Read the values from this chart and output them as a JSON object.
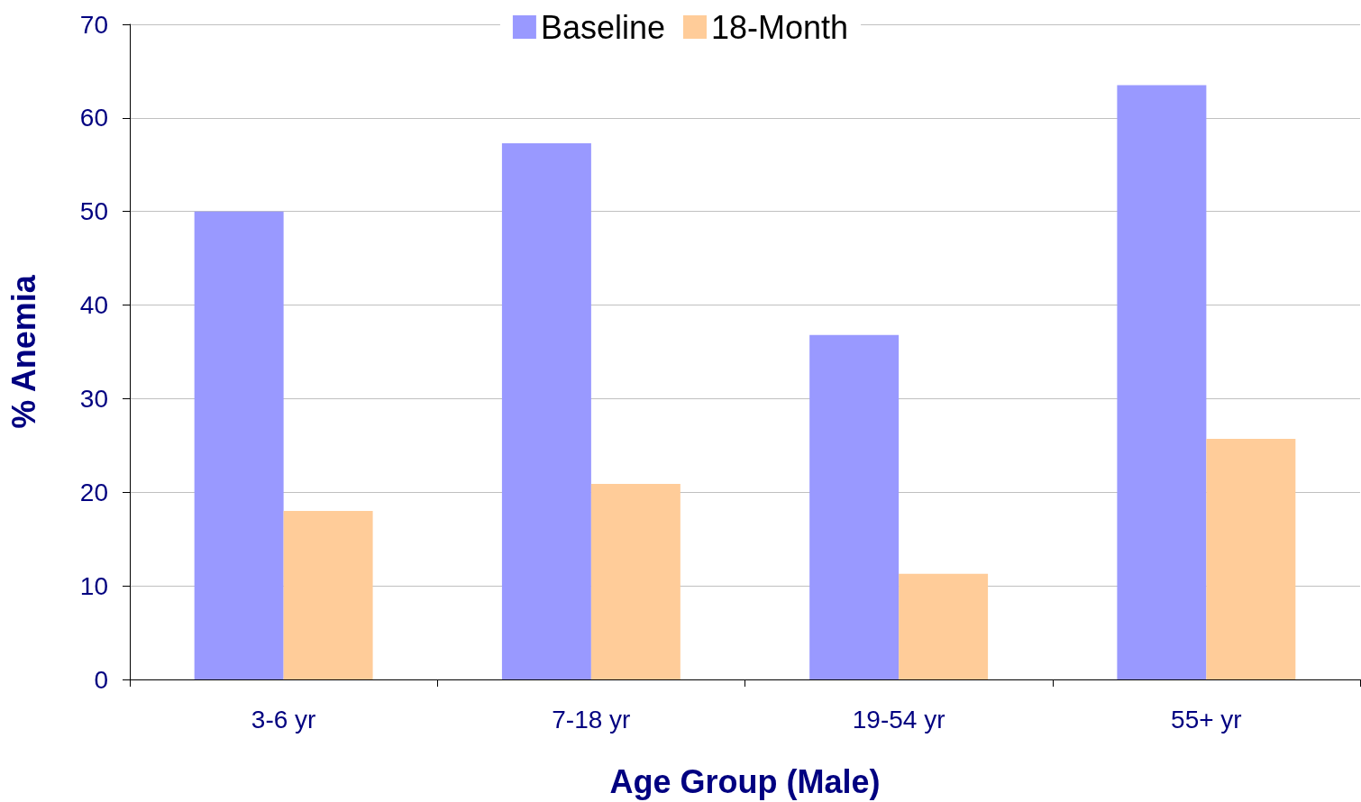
{
  "chart_data": {
    "type": "bar",
    "xlabel": "Age Group (Male)",
    "ylabel": "% Anemia",
    "categories": [
      "3-6 yr",
      "7-18 yr",
      "19-54 yr",
      "55+ yr"
    ],
    "series": [
      {
        "name": "Baseline",
        "color": "#9999ff",
        "values": [
          50,
          57.3,
          36.8,
          63.5
        ]
      },
      {
        "name": "18-Month",
        "color": "#ffcc99",
        "values": [
          18,
          20.9,
          11.3,
          25.7
        ]
      }
    ],
    "ylim": [
      0,
      70
    ],
    "yticks": [
      0,
      10,
      20,
      30,
      40,
      50,
      60,
      70
    ],
    "grid": "y",
    "legend": "top"
  }
}
